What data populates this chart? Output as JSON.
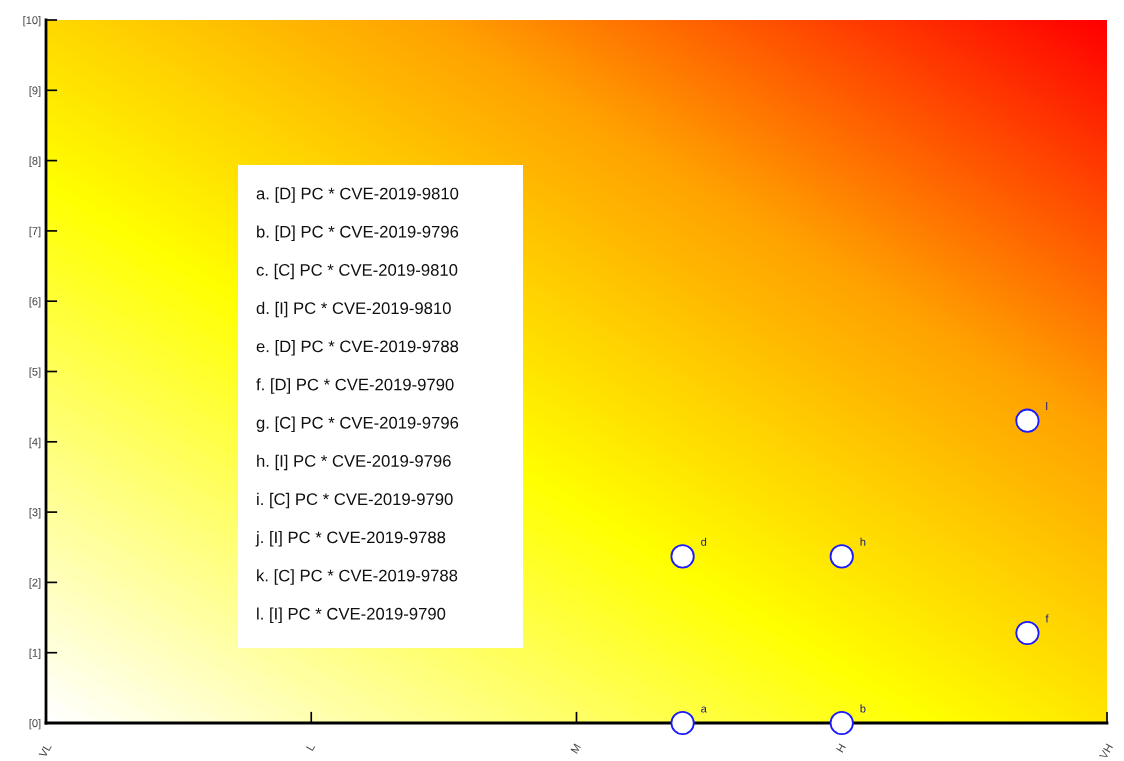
{
  "chart_data": {
    "type": "scatter",
    "categories": [
      "VL",
      null,
      null,
      null,
      null,
      null,
      null,
      null,
      null,
      null,
      "L",
      null,
      null,
      null,
      null,
      null,
      null,
      null,
      null,
      null,
      "M",
      null,
      null,
      null,
      null,
      null,
      null,
      null,
      null,
      null,
      "H",
      null,
      null,
      null,
      null,
      null,
      null,
      null,
      null,
      null,
      "VH"
    ],
    "series": [
      {
        "color": "#1a1aff",
        "values": [
          null,
          null,
          null,
          null,
          null,
          null,
          null,
          null,
          null,
          null,
          null,
          null,
          null,
          null,
          null,
          null,
          null,
          null,
          null,
          null,
          null,
          null,
          null,
          null,
          0,
          null,
          null,
          null,
          null,
          null,
          0,
          null,
          null,
          null,
          null,
          null,
          null,
          1.28,
          null,
          null,
          null
        ],
        "value_labels": [
          null,
          null,
          null,
          null,
          null,
          null,
          null,
          null,
          null,
          null,
          null,
          null,
          null,
          null,
          null,
          null,
          null,
          null,
          null,
          null,
          null,
          null,
          null,
          null,
          "a",
          null,
          null,
          null,
          null,
          null,
          "b",
          null,
          null,
          null,
          null,
          null,
          null,
          "f",
          null,
          null,
          null
        ]
      },
      {
        "color": "#1a1aff",
        "values": [
          null,
          null,
          null,
          null,
          null,
          null,
          null,
          null,
          null,
          null,
          null,
          null,
          null,
          null,
          null,
          null,
          null,
          null,
          null,
          null,
          null,
          null,
          null,
          null,
          2.37,
          null,
          null,
          null,
          null,
          null,
          2.37,
          null,
          null,
          null,
          null,
          null,
          null,
          4.3,
          null,
          null,
          null
        ],
        "value_labels": [
          null,
          null,
          null,
          null,
          null,
          null,
          null,
          null,
          null,
          null,
          null,
          null,
          null,
          null,
          null,
          null,
          null,
          null,
          null,
          null,
          null,
          null,
          null,
          null,
          "d",
          null,
          null,
          null,
          null,
          null,
          "h",
          null,
          null,
          null,
          null,
          null,
          null,
          "l",
          null,
          null,
          null
        ]
      }
    ],
    "marker": "circle",
    "ylim": [
      0,
      10
    ],
    "yticks": [
      {
        "value": 0,
        "label": "[0]"
      },
      {
        "value": 1,
        "label": "[1]"
      },
      {
        "value": 2,
        "label": "[2]"
      },
      {
        "value": 3,
        "label": "[3]"
      },
      {
        "value": 4,
        "label": "[4]"
      },
      {
        "value": 5,
        "label": "[5]"
      },
      {
        "value": 6,
        "label": "[6]"
      },
      {
        "value": 7,
        "label": "[7]"
      },
      {
        "value": 8,
        "label": "[8]"
      },
      {
        "value": 9,
        "label": "[9]"
      },
      {
        "value": 10,
        "label": "[10]"
      }
    ],
    "grid": false,
    "legend": false,
    "annotations": [
      "a. [D] PC * CVE-2019-9810",
      "b. [D] PC * CVE-2019-9796",
      "c. [C] PC * CVE-2019-9810",
      "d. [I] PC * CVE-2019-9810",
      "e. [D] PC * CVE-2019-9788",
      "f. [D] PC * CVE-2019-9790",
      "g. [C] PC * CVE-2019-9796",
      "h. [I] PC * CVE-2019-9796",
      "i. [C] PC * CVE-2019-9790",
      "j. [I] PC * CVE-2019-9788",
      "k. [C] PC * CVE-2019-9788",
      "l. [I] PC * CVE-2019-9790"
    ]
  }
}
